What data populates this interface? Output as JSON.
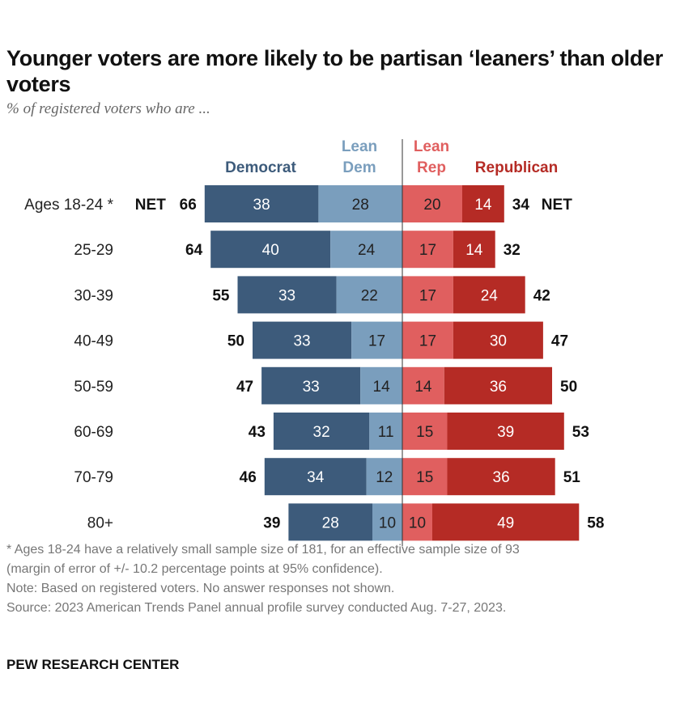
{
  "title": "Younger voters are more likely to be partisan ‘leaners’ than older voters",
  "subtitle": "% of registered voters who are ...",
  "chart_data": {
    "type": "bar",
    "orientation": "horizontal-diverging",
    "categories": [
      "Ages 18-24 *",
      "25-29",
      "30-39",
      "40-49",
      "50-59",
      "60-69",
      "70-79",
      "80+"
    ],
    "series": [
      {
        "name": "Democrat",
        "side": "left",
        "color": "#3D5B7B",
        "values": [
          38,
          40,
          33,
          33,
          33,
          32,
          34,
          28
        ]
      },
      {
        "name": "Lean Dem",
        "side": "left",
        "color": "#7A9EBD",
        "values": [
          28,
          24,
          22,
          17,
          14,
          11,
          12,
          10
        ]
      },
      {
        "name": "Lean Rep",
        "side": "right",
        "color": "#E05F5F",
        "values": [
          20,
          17,
          17,
          17,
          14,
          15,
          15,
          10
        ]
      },
      {
        "name": "Republican",
        "side": "right",
        "color": "#B52B25",
        "values": [
          14,
          14,
          24,
          30,
          36,
          39,
          36,
          49
        ]
      }
    ],
    "net_dem": [
      66,
      64,
      55,
      50,
      47,
      43,
      46,
      39
    ],
    "net_rep": [
      34,
      32,
      42,
      47,
      50,
      53,
      51,
      58
    ],
    "net_label": "NET",
    "legend": {
      "democrat": "Democrat",
      "lean_dem": [
        "Lean",
        "Dem"
      ],
      "lean_rep": [
        "Lean",
        "Rep"
      ],
      "republican": "Republican"
    }
  },
  "notes": {
    "footnote_1": "* Ages 18-24 have a relatively small sample size of 181, for an effective sample size of 93",
    "footnote_2": "(margin of error of +/- 10.2 percentage points at 95% confidence).",
    "note": "Note: Based on registered voters. No answer responses not shown.",
    "source": "Source: 2023 American Trends Panel annual profile survey conducted Aug. 7-27, 2023."
  },
  "brand": "PEW RESEARCH CENTER"
}
